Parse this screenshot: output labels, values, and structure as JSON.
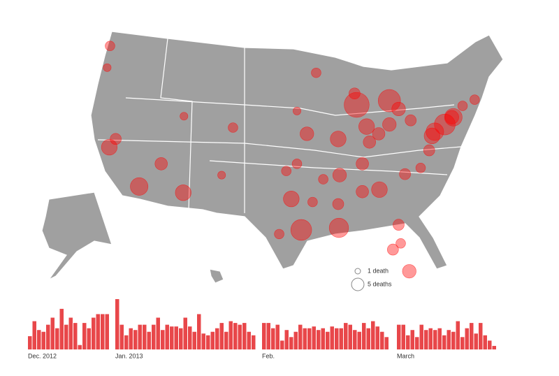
{
  "map": {
    "legend": [
      {
        "deaths": 1,
        "label": "1 death"
      },
      {
        "deaths": 5,
        "label": "5 deaths"
      }
    ],
    "bubbles": [
      {
        "lon": -118.2,
        "lat": 34.0,
        "deaths": 10
      },
      {
        "lon": -122.4,
        "lat": 37.8,
        "deaths": 8
      },
      {
        "lon": -121.5,
        "lat": 38.6,
        "deaths": 4
      },
      {
        "lon": -122.3,
        "lat": 47.6,
        "deaths": 3
      },
      {
        "lon": -122.7,
        "lat": 45.5,
        "deaths": 2
      },
      {
        "lon": -112.0,
        "lat": 33.4,
        "deaths": 8
      },
      {
        "lon": -115.1,
        "lat": 36.2,
        "deaths": 5
      },
      {
        "lon": -105.0,
        "lat": 39.7,
        "deaths": 3
      },
      {
        "lon": -111.9,
        "lat": 40.8,
        "deaths": 2
      },
      {
        "lon": -106.6,
        "lat": 35.1,
        "deaths": 2
      },
      {
        "lon": -95.4,
        "lat": 29.8,
        "deaths": 14
      },
      {
        "lon": -96.8,
        "lat": 32.8,
        "deaths": 8
      },
      {
        "lon": -98.5,
        "lat": 29.4,
        "deaths": 3
      },
      {
        "lon": -90.1,
        "lat": 30.0,
        "deaths": 12
      },
      {
        "lon": -90.0,
        "lat": 35.1,
        "deaths": 6
      },
      {
        "lon": -84.4,
        "lat": 33.7,
        "deaths": 8
      },
      {
        "lon": -86.8,
        "lat": 33.5,
        "deaths": 5
      },
      {
        "lon": -90.2,
        "lat": 32.3,
        "deaths": 4
      },
      {
        "lon": -80.2,
        "lat": 25.8,
        "deaths": 6
      },
      {
        "lon": -82.5,
        "lat": 27.9,
        "deaths": 4
      },
      {
        "lon": -81.7,
        "lat": 30.3,
        "deaths": 4
      },
      {
        "lon": -81.4,
        "lat": 28.5,
        "deaths": 3
      },
      {
        "lon": -80.8,
        "lat": 35.2,
        "deaths": 4
      },
      {
        "lon": -78.6,
        "lat": 35.8,
        "deaths": 3
      },
      {
        "lon": -77.4,
        "lat": 37.5,
        "deaths": 4
      },
      {
        "lon": -77.0,
        "lat": 38.9,
        "deaths": 8
      },
      {
        "lon": -76.6,
        "lat": 39.3,
        "deaths": 10
      },
      {
        "lon": -75.2,
        "lat": 40.0,
        "deaths": 14
      },
      {
        "lon": -74.0,
        "lat": 40.7,
        "deaths": 10
      },
      {
        "lon": -74.2,
        "lat": 40.7,
        "deaths": 6
      },
      {
        "lon": -71.0,
        "lat": 42.4,
        "deaths": 3
      },
      {
        "lon": -72.7,
        "lat": 41.8,
        "deaths": 3
      },
      {
        "lon": -80.0,
        "lat": 40.4,
        "deaths": 4
      },
      {
        "lon": -81.7,
        "lat": 41.5,
        "deaths": 6
      },
      {
        "lon": -83.0,
        "lat": 42.3,
        "deaths": 16
      },
      {
        "lon": -87.6,
        "lat": 41.9,
        "deaths": 20
      },
      {
        "lon": -86.2,
        "lat": 39.8,
        "deaths": 8
      },
      {
        "lon": -83.0,
        "lat": 40.0,
        "deaths": 6
      },
      {
        "lon": -84.5,
        "lat": 39.1,
        "deaths": 5
      },
      {
        "lon": -85.8,
        "lat": 38.3,
        "deaths": 5
      },
      {
        "lon": -90.2,
        "lat": 38.6,
        "deaths": 8
      },
      {
        "lon": -94.6,
        "lat": 39.1,
        "deaths": 6
      },
      {
        "lon": -87.9,
        "lat": 43.0,
        "deaths": 4
      },
      {
        "lon": -93.3,
        "lat": 45.0,
        "deaths": 3
      },
      {
        "lon": -86.8,
        "lat": 36.2,
        "deaths": 5
      },
      {
        "lon": -97.5,
        "lat": 35.5,
        "deaths": 3
      },
      {
        "lon": -96.0,
        "lat": 36.2,
        "deaths": 3
      },
      {
        "lon": -96.0,
        "lat": 41.3,
        "deaths": 2
      },
      {
        "lon": -92.3,
        "lat": 34.7,
        "deaths": 3
      },
      {
        "lon": -93.8,
        "lat": 32.5,
        "deaths": 3
      }
    ]
  },
  "chart_data": {
    "type": "bar",
    "color": "#e8474a",
    "months": [
      {
        "label": "Dec. 2012",
        "values": [
          15,
          32,
          22,
          20,
          28,
          36,
          24,
          46,
          28,
          36,
          30,
          5,
          30,
          24,
          36,
          40,
          40,
          40
        ]
      },
      {
        "label": "Jan. 2013",
        "values": [
          57,
          28,
          16,
          24,
          22,
          28,
          28,
          20,
          28,
          36,
          22,
          28,
          26,
          26,
          24,
          36,
          26,
          20,
          40,
          18,
          16,
          20,
          24,
          30,
          20,
          32,
          30,
          28,
          30,
          20,
          16
        ]
      },
      {
        "label": "Feb.",
        "values": [
          30,
          30,
          24,
          28,
          10,
          22,
          14,
          20,
          28,
          24,
          24,
          26,
          22,
          24,
          20,
          26,
          24,
          24,
          30,
          28,
          22,
          20,
          30,
          24,
          32,
          26,
          20,
          14
        ]
      },
      {
        "label": "March",
        "values": [
          28,
          28,
          16,
          22,
          14,
          28,
          22,
          24,
          22,
          24,
          16,
          22,
          20,
          32,
          14,
          24,
          30,
          18,
          30,
          16,
          10,
          4
        ]
      }
    ]
  }
}
